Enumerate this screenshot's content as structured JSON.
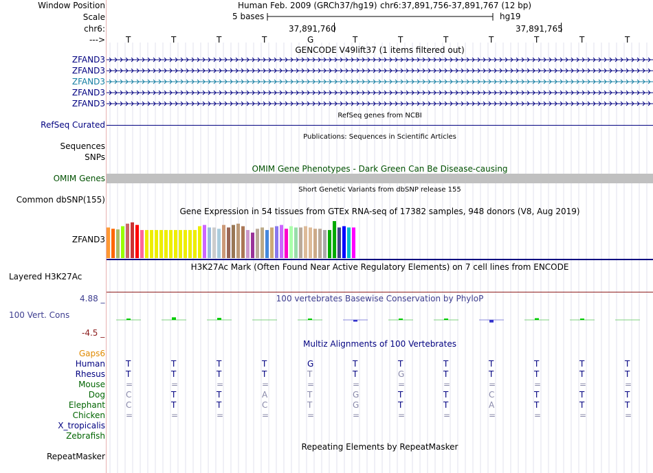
{
  "header": {
    "window_position_label": "Window Position",
    "assembly": "Human Feb. 2009 (GRCh37/hg19)",
    "position": "chr6:37,891,756-37,891,767 (12 bp)",
    "scale_label": "Scale",
    "scale_text": "5 bases",
    "scale_db": "hg19",
    "chrom_label": "chr6:",
    "coord1": "37,891,760",
    "coord2": "37,891,765",
    "strand_label": "--->"
  },
  "bases": [
    "T",
    "T",
    "T",
    "T",
    "G",
    "T",
    "T",
    "T",
    "T",
    "T",
    "T",
    "T"
  ],
  "tracks": {
    "gencode_title": "GENCODE V49lift37 (1 items filtered out)",
    "gencode_rows": [
      {
        "label": "ZFAND3",
        "color": "#000080"
      },
      {
        "label": "ZFAND3",
        "color": "#000080"
      },
      {
        "label": "ZFAND3",
        "color": "#127da1"
      },
      {
        "label": "ZFAND3",
        "color": "#000080"
      },
      {
        "label": "ZFAND3",
        "color": "#000080"
      }
    ],
    "refseq_title": "RefSeq genes from NCBI",
    "refseq_label": "RefSeq Curated",
    "pubs_title": "Publications: Sequences in Scientific Articles",
    "pubs_label": "Sequences",
    "snps_label": "SNPs",
    "omim_title": "OMIM Gene Phenotypes - Dark Green Can Be Disease-causing",
    "omim_label": "OMIM Genes",
    "dbsnp_title": "Short Genetic Variants from dbSNP release 155",
    "dbsnp_label": "Common dbSNP(155)",
    "gtex_title": "Gene Expression in 54 tissues from GTEx RNA-seq of 17382 samples, 948 donors (V8, Aug 2019)",
    "gtex_label": "ZFAND3",
    "h3k27_title": "H3K27Ac Mark (Often Found Near Active Regulatory Elements) on 7 cell lines from ENCODE",
    "h3k27_label": "Layered H3K27Ac",
    "cons_title": "100 vertebrates Basewise Conservation by PhyloP",
    "cons_label": "100 Vert. Cons",
    "cons_max": "4.88 _",
    "cons_min": "-4.5 _",
    "multiz_title": "Multiz Alignments of 100 Vertebrates",
    "gaps_label": "Gaps6",
    "repeat_title": "Repeating Elements by RepeatMasker",
    "repeat_label": "RepeatMasker"
  },
  "gtex_values": [
    48,
    46,
    45,
    50,
    54,
    56,
    52,
    44,
    44,
    44,
    44,
    44,
    44,
    44,
    44,
    44,
    44,
    44,
    44,
    50,
    52,
    48,
    48,
    46,
    52,
    48,
    52,
    54,
    50,
    44,
    40,
    46,
    48,
    44,
    48,
    50,
    52,
    46,
    50,
    48,
    48,
    50,
    48,
    46,
    46,
    44,
    44,
    58,
    48,
    50,
    48,
    48
  ],
  "gtex_colors": [
    "#ff9933",
    "#ff6600",
    "#aabb66",
    "#99ff00",
    "#cc6666",
    "#cc3333",
    "#ff0000",
    "#ff6699",
    "#eeee00",
    "#eeee00",
    "#eeee00",
    "#eeee00",
    "#eeee00",
    "#eeee00",
    "#eeee00",
    "#eeee00",
    "#eeee00",
    "#eeee00",
    "#eeee00",
    "#eeee00",
    "#cc66ff",
    "#99bbdd",
    "#cccccc",
    "#aaccdd",
    "#cc9977",
    "#996655",
    "#997755",
    "#bb9977",
    "#aa7755",
    "#cc99cc",
    "#993399",
    "#bbaa99",
    "#bbaa88",
    "#4488dd",
    "#ccaa77",
    "#8877ee",
    "#cc66ff",
    "#ff00cc",
    "#aaffaa",
    "#99ddaa",
    "#bbaa99",
    "#ddbb99",
    "#ddbb99",
    "#ccaa88",
    "#bbaa99",
    "#aaaaaa",
    "#00aa00",
    "#00aa00",
    "#444488",
    "#0000ff",
    "#00bbcc",
    "#ff00ff"
  ],
  "conservation": [
    0.05,
    0.15,
    0.12,
    0,
    0.05,
    -0.1,
    0.02,
    0.03,
    -0.15,
    0.1,
    0.05,
    0
  ],
  "multiz": {
    "species": [
      {
        "name": "Human",
        "color": "#000080",
        "bases": [
          "T",
          "T",
          "T",
          "T",
          "G",
          "T",
          "T",
          "T",
          "T",
          "T",
          "T",
          "T"
        ]
      },
      {
        "name": "Rhesus",
        "color": "#000080",
        "bases": [
          "T",
          "T",
          "T",
          "T",
          "T",
          "T",
          "G",
          "T",
          "T",
          "T",
          "T",
          "T"
        ]
      },
      {
        "name": "Mouse",
        "color": "#006400",
        "bases": [
          "=",
          "=",
          "=",
          "=",
          "=",
          "=",
          "=",
          "=",
          "=",
          "=",
          "=",
          "="
        ]
      },
      {
        "name": "Dog",
        "color": "#006400",
        "bases": [
          "C",
          "T",
          "T",
          "A",
          "T",
          "G",
          "T",
          "T",
          "C",
          "T",
          "T",
          "T"
        ]
      },
      {
        "name": "Elephant",
        "color": "#006400",
        "bases": [
          "C",
          "T",
          "T",
          "C",
          "T",
          "G",
          "T",
          "T",
          "A",
          "T",
          "T",
          "T"
        ]
      },
      {
        "name": "Chicken",
        "color": "#006400",
        "bases": [
          "=",
          "=",
          "=",
          "=",
          "=",
          "=",
          "=",
          "=",
          "=",
          "=",
          "=",
          "="
        ]
      },
      {
        "name": "X_tropicalis",
        "color": "#000080",
        "bases": [
          "",
          "",
          "",
          "",
          "",
          "",
          "",
          "",
          "",
          "",
          "",
          ""
        ]
      },
      {
        "name": "Zebrafish",
        "color": "#006400",
        "bases": [
          "",
          "",
          "",
          "",
          "",
          "",
          "",
          "",
          "",
          "",
          "",
          ""
        ]
      }
    ]
  },
  "colors": {
    "navy": "#000080",
    "omim_green": "#005000",
    "omim_bar": "#c0c0c0",
    "cons_blue": "#3d3d8f",
    "cons_red": "#8b1a1a",
    "gaps_orange": "#e08a00",
    "dim_base": "#8888aa"
  }
}
